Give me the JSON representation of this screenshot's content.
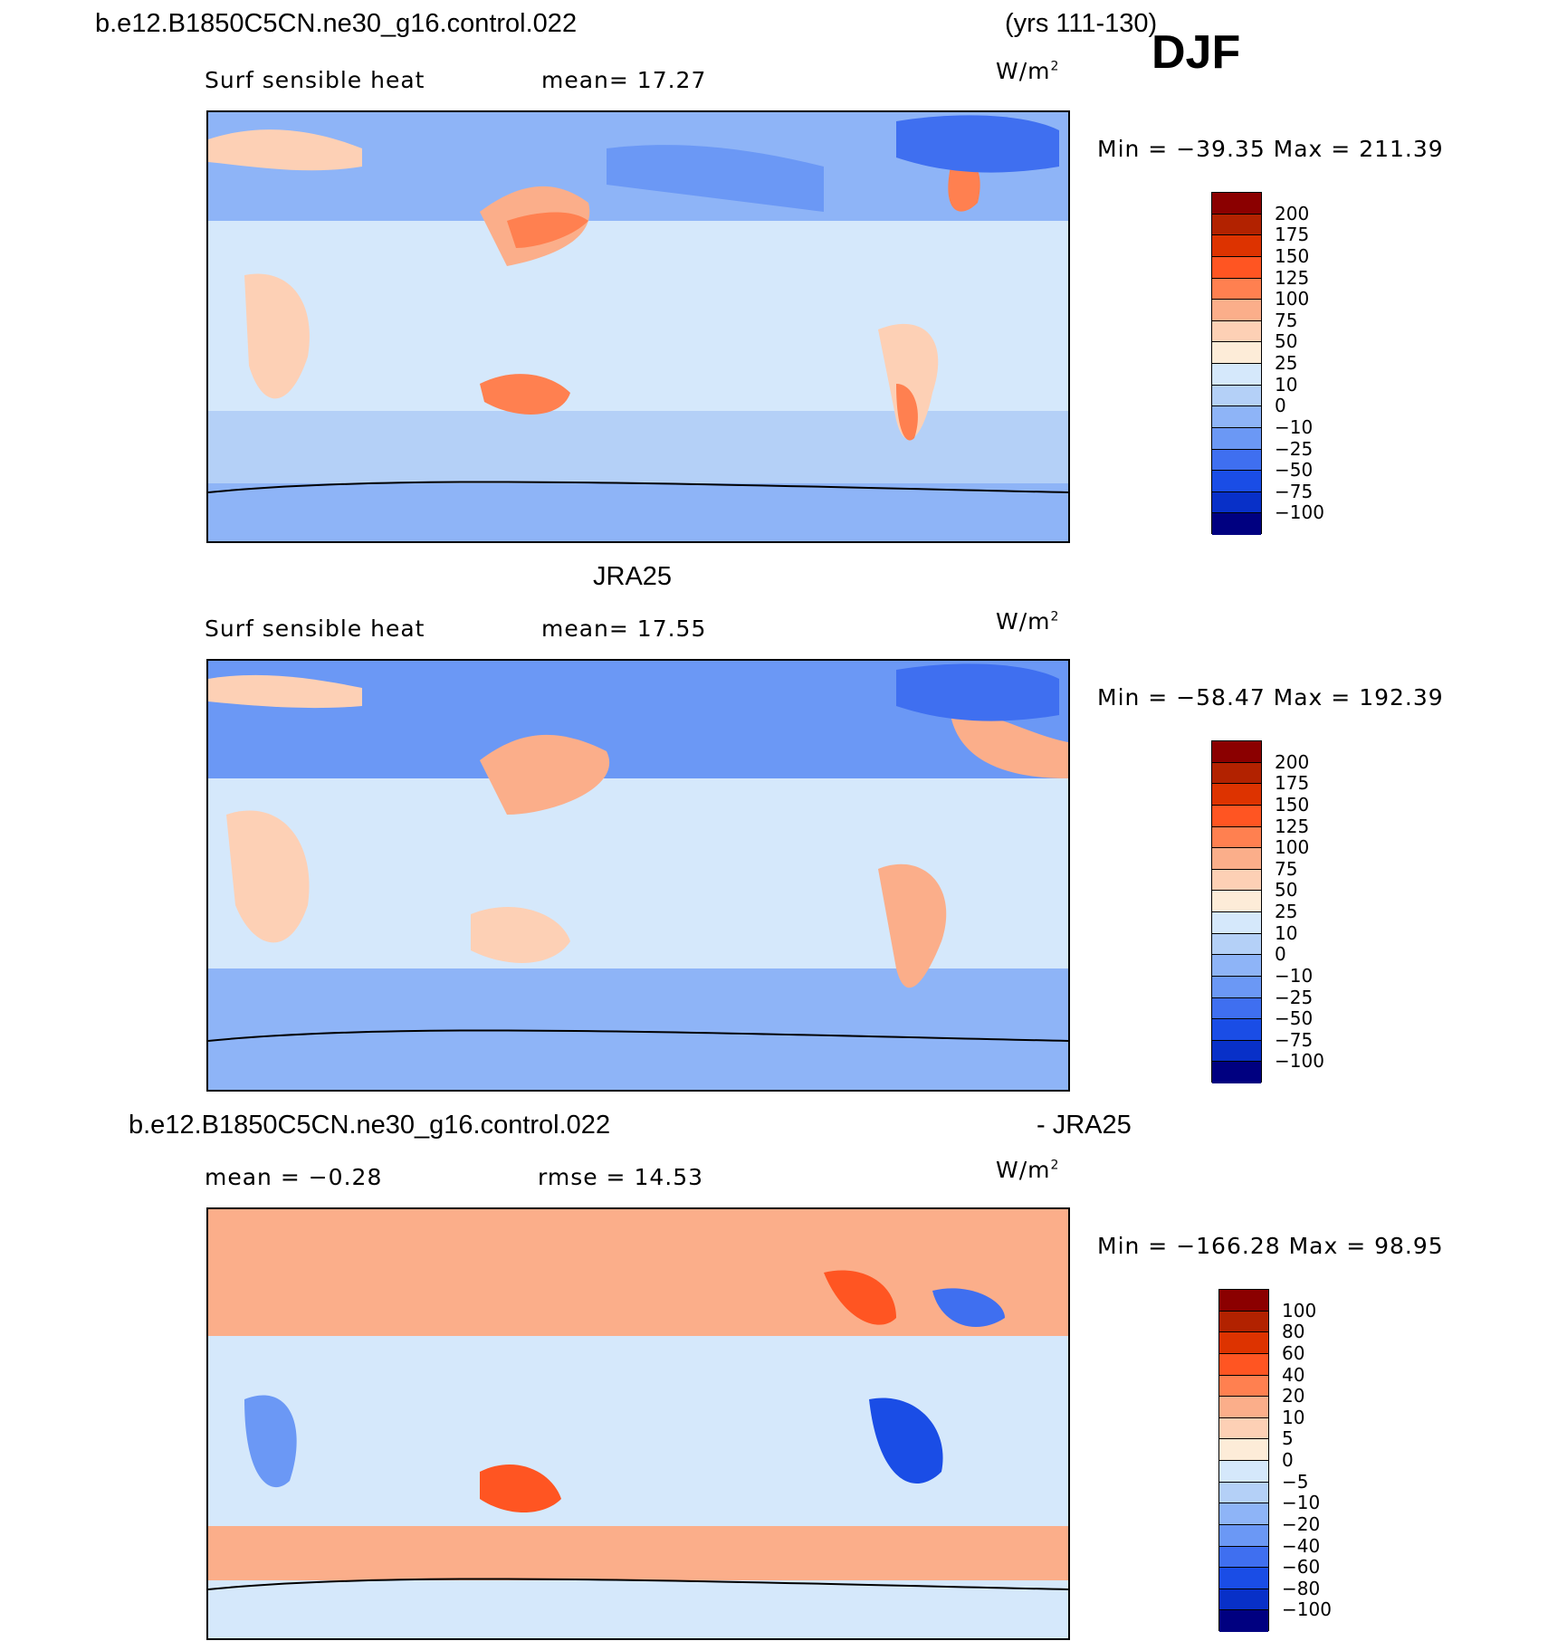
{
  "header": {
    "case_name": "b.e12.B1850C5CN.ne30_g16.control.022",
    "years": "(yrs 111-130)",
    "season": "DJF"
  },
  "panels": [
    {
      "id": "model",
      "heading": "",
      "left_title": "Surf sensible heat",
      "center_title": "mean=  17.27",
      "units": "W/m²",
      "minmax": "Min = −39.35 Max = 211.39"
    },
    {
      "id": "obs",
      "heading": "JRA25",
      "left_title": "Surf sensible heat",
      "center_title": "mean=  17.55",
      "units": "W/m²",
      "minmax": "Min = −58.47 Max = 192.39"
    },
    {
      "id": "diff",
      "heading_left": "b.e12.B1850C5CN.ne30_g16.control.022",
      "heading_right": "- JRA25",
      "left_title": "mean =   −0.28",
      "center_title": "rmse =   14.53",
      "units": "W/m²",
      "minmax": "Min = −166.28 Max =   98.95"
    }
  ],
  "colorbars": {
    "abs_labels": [
      "200",
      "175",
      "150",
      "125",
      "100",
      "75",
      "50",
      "25",
      "10",
      "0",
      "−10",
      "−25",
      "−50",
      "−75",
      "−100"
    ],
    "abs_colors": [
      "#8b0000",
      "#b22200",
      "#dd3300",
      "#ff5522",
      "#ff8050",
      "#fbae8a",
      "#fdd0b5",
      "#fdecd8",
      "#d5e8fb",
      "#b4d0f7",
      "#8eb4f7",
      "#6b98f5",
      "#3f6ff0",
      "#1a4de6",
      "#0830c8",
      "#000080"
    ],
    "diff_labels": [
      "100",
      "80",
      "60",
      "40",
      "20",
      "10",
      "5",
      "0",
      "−5",
      "−10",
      "−20",
      "−40",
      "−60",
      "−80",
      "−100"
    ],
    "diff_colors": [
      "#8b0000",
      "#b22200",
      "#dd3300",
      "#ff5522",
      "#ff8050",
      "#fbae8a",
      "#fdd0b5",
      "#fdecd8",
      "#d5e8fb",
      "#b4d0f7",
      "#8eb4f7",
      "#6b98f5",
      "#3f6ff0",
      "#1a4de6",
      "#0830c8",
      "#000080"
    ]
  },
  "chart_data": [
    {
      "type": "heatmap",
      "title": "Surf sensible heat",
      "subtitle": "mean=  17.27",
      "units": "W/m²",
      "min": -39.35,
      "max": 211.39,
      "mean": 17.27,
      "levels": [
        -100,
        -75,
        -50,
        -25,
        -10,
        0,
        10,
        25,
        50,
        75,
        100,
        125,
        150,
        175,
        200
      ]
    },
    {
      "type": "heatmap",
      "title": "Surf sensible heat",
      "subtitle": "mean=  17.55",
      "units": "W/m²",
      "min": -58.47,
      "max": 192.39,
      "mean": 17.55,
      "levels": [
        -100,
        -75,
        -50,
        -25,
        -10,
        0,
        10,
        25,
        50,
        75,
        100,
        125,
        150,
        175,
        200
      ]
    },
    {
      "type": "heatmap",
      "units": "W/m²",
      "min": -166.28,
      "max": 98.95,
      "mean": -0.28,
      "rmse": 14.53,
      "levels": [
        -100,
        -80,
        -60,
        -40,
        -20,
        -10,
        -5,
        0,
        5,
        10,
        20,
        40,
        60,
        80,
        100
      ]
    }
  ]
}
